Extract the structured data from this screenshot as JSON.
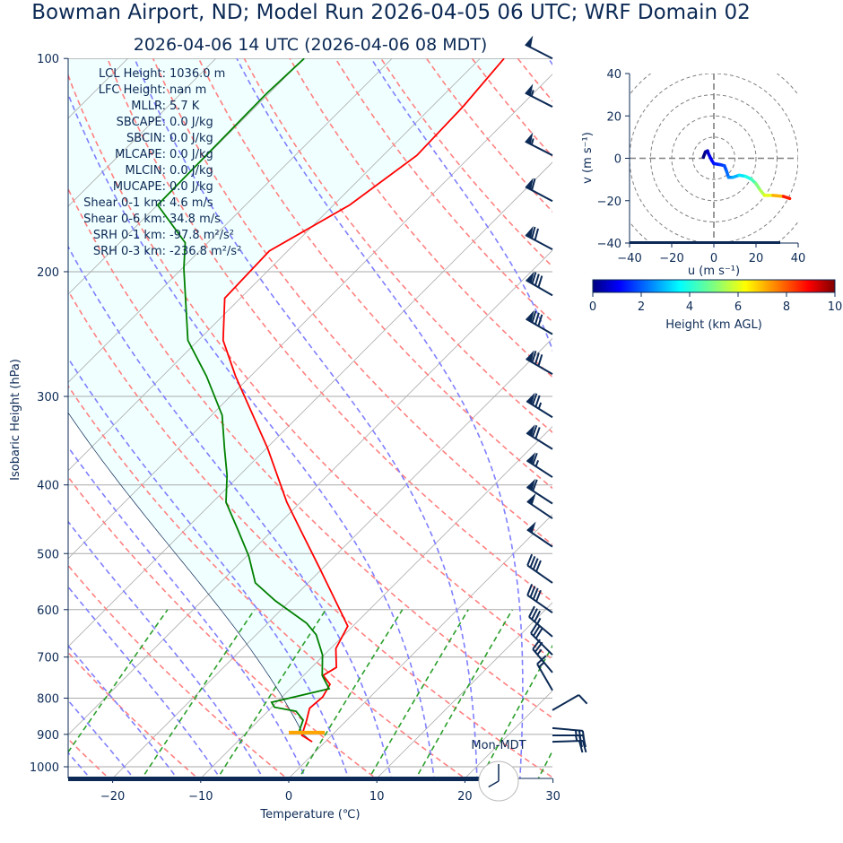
{
  "title": "Bowman Airport, ND; Model Run 2026-04-05 06 UTC; WRF Domain 02",
  "subtitle": "2026-04-06 14 UTC  (2026-04-06 08 MDT)",
  "colors": {
    "text": "#0c2a55",
    "temperature": "#ff0000",
    "dewpoint": "#008000",
    "dry_adiabat": "#ff8080",
    "moist_adiabat": "#7f7fff",
    "mixing_ratio": "#2ca02c",
    "cin_fill": "#f0ffff",
    "lcl_marker": "#ffa500"
  },
  "stats": [
    {
      "label": "LCL Height:",
      "value": "1036.0 m"
    },
    {
      "label": "LFC Height:",
      "value": "nan m"
    },
    {
      "label": "MLLR:",
      "value": "5.7 K"
    },
    {
      "label": "SBCAPE:",
      "value": "0.0 J/kg"
    },
    {
      "label": "SBCIN:",
      "value": "0.0 J/kg"
    },
    {
      "label": "MLCAPE:",
      "value": "0.0 J/kg"
    },
    {
      "label": "MLCIN:",
      "value": "0.0 J/kg"
    },
    {
      "label": "MUCAPE:",
      "value": "0.0 J/kg"
    },
    {
      "label": "Shear 0-1 km:",
      "value": "4.6 m/s"
    },
    {
      "label": "Shear 0-6 km:",
      "value": "34.8 m/s"
    },
    {
      "label": "SRH 0-1 km:",
      "value": "-97.8 m²/s²"
    },
    {
      "label": "SRH 0-3 km:",
      "value": "-236.8 m²/s²"
    }
  ],
  "clock": {
    "label": "Mon-MDT",
    "hour": 8,
    "minute": 0
  },
  "chart_data": [
    {
      "type": "line",
      "name": "skew-t",
      "xlabel": "Temperature (℃)",
      "ylabel": "Isobaric Height (hPa)",
      "xlim": [
        -25,
        30
      ],
      "ylim": [
        1039,
        100
      ],
      "yscale": "log",
      "skew_deg": 45,
      "grid": true,
      "xticks": [
        "−20",
        "−10",
        "0",
        "10",
        "20",
        "30"
      ],
      "xtick_values": [
        -20,
        -10,
        0,
        10,
        20,
        30
      ],
      "yticks": [
        "100",
        "200",
        "300",
        "400",
        "500",
        "600",
        "700",
        "800",
        "900",
        "1000"
      ],
      "ytick_values": [
        100,
        200,
        300,
        400,
        500,
        600,
        700,
        800,
        900,
        1000
      ],
      "temperature": {
        "p": [
          922,
          903,
          859,
          827,
          797,
          765,
          743,
          724,
          681,
          633,
          524,
          462,
          423,
          355,
          281,
          250,
          218,
          187,
          161,
          137,
          117,
          100
        ],
        "T": [
          -1.5,
          -3.4,
          -4.6,
          -5.6,
          -5.4,
          -6.0,
          -7.8,
          -7.2,
          -9.4,
          -10.6,
          -20.4,
          -27.0,
          -31.6,
          -39.9,
          -51.7,
          -57.2,
          -61.8,
          -62.1,
          -58.2,
          -56.2,
          -56.5,
          -57.3
        ]
      },
      "dewpoint": {
        "p": [
          890,
          859,
          835,
          824,
          811,
          776,
          743,
          695,
          651,
          627,
          583,
          550,
          504,
          462,
          423,
          388,
          355,
          319,
          281,
          250,
          198,
          182,
          161,
          112,
          100
        ],
        "Td": [
          -4.2,
          -5.0,
          -6.8,
          -9.7,
          -10.6,
          -5.6,
          -7.9,
          -10.2,
          -13.2,
          -15.6,
          -21.7,
          -26.0,
          -29.8,
          -34.1,
          -38.5,
          -41.4,
          -44.8,
          -48.8,
          -55.0,
          -61.2,
          -69.8,
          -72.6,
          -80.0,
          -80.3,
          -80.0
        ]
      },
      "lcl": {
        "p": 900
      },
      "parcel_start": {
        "p": 922,
        "T": -1.5
      },
      "dry_adiabats_K": [
        230,
        240,
        250,
        260,
        270,
        280,
        290,
        300,
        310,
        320,
        330,
        340,
        350,
        360,
        370,
        380,
        390,
        400,
        410,
        420,
        430,
        440,
        450,
        460,
        470,
        480,
        490,
        500
      ],
      "moist_adiabats_C_at_1000": [
        -30,
        -25,
        -20,
        -15,
        -10,
        -5,
        0,
        5,
        10,
        15,
        20,
        25,
        30,
        35
      ],
      "mixing_ratios_gkg": [
        0.4,
        1,
        2,
        4,
        7,
        10,
        16,
        24,
        32
      ],
      "wind_barbs": [
        {
          "p": 100,
          "kt": 50,
          "dir": 297
        },
        {
          "p": 117,
          "kt": 55,
          "dir": 297
        },
        {
          "p": 137,
          "kt": 55,
          "dir": 297
        },
        {
          "p": 159,
          "kt": 60,
          "dir": 298
        },
        {
          "p": 186,
          "kt": 70,
          "dir": 298
        },
        {
          "p": 216,
          "kt": 80,
          "dir": 300
        },
        {
          "p": 245,
          "kt": 80,
          "dir": 300
        },
        {
          "p": 279,
          "kt": 80,
          "dir": 300
        },
        {
          "p": 321,
          "kt": 75,
          "dir": 302
        },
        {
          "p": 356,
          "kt": 70,
          "dir": 302
        },
        {
          "p": 390,
          "kt": 65,
          "dir": 303
        },
        {
          "p": 425,
          "kt": 60,
          "dir": 303
        },
        {
          "p": 446,
          "kt": 50,
          "dir": 304
        },
        {
          "p": 489,
          "kt": 50,
          "dir": 304
        },
        {
          "p": 550,
          "kt": 40,
          "dir": 305
        },
        {
          "p": 606,
          "kt": 40,
          "dir": 305
        },
        {
          "p": 655,
          "kt": 35,
          "dir": 310
        },
        {
          "p": 695,
          "kt": 30,
          "dir": 315
        },
        {
          "p": 736,
          "kt": 25,
          "dir": 320
        },
        {
          "p": 780,
          "kt": 15,
          "dir": 330
        },
        {
          "p": 832,
          "kt": 10,
          "dir": 60
        },
        {
          "p": 882,
          "kt": 25,
          "dir": 95
        },
        {
          "p": 903,
          "kt": 25,
          "dir": 90
        },
        {
          "p": 922,
          "kt": 20,
          "dir": 88
        }
      ]
    },
    {
      "type": "line",
      "name": "hodograph",
      "xlabel": "u (m s⁻¹)",
      "ylabel": "v (m s⁻¹)",
      "xlim": [
        -40,
        40
      ],
      "ylim": [
        -40,
        40
      ],
      "xticks": [
        "−40",
        "−20",
        "0",
        "20",
        "40"
      ],
      "yticks": [
        "40",
        "20",
        "0",
        "−20",
        "−40"
      ],
      "tick_values": [
        -40,
        -20,
        0,
        20,
        40
      ],
      "rings": [
        10,
        20,
        30,
        40,
        50
      ],
      "u": [
        -5,
        -4,
        -3,
        -2.5,
        -2,
        -1,
        0,
        3,
        5,
        6,
        7,
        9,
        12,
        15,
        18,
        20,
        22,
        24,
        28,
        33,
        36
      ],
      "v": [
        0.5,
        3,
        3.5,
        2,
        1,
        -1,
        -2.5,
        -3,
        -3.5,
        -6,
        -9,
        -9,
        -8,
        -8.5,
        -10,
        -12,
        -15,
        -17.5,
        -17.5,
        -18,
        -19
      ],
      "height_km": [
        0,
        0.3,
        0.6,
        0.9,
        1.1,
        1.3,
        1.5,
        1.8,
        2.0,
        2.3,
        2.6,
        3.0,
        3.5,
        4.0,
        4.5,
        5.0,
        5.5,
        6.0,
        7.0,
        8.5,
        9.5
      ]
    },
    {
      "type": "colorbar",
      "name": "height-colorbar",
      "label": "Height (km AGL)",
      "range": [
        0,
        10
      ],
      "colormap": "jet",
      "ticks": [
        "0",
        "2",
        "4",
        "6",
        "8",
        "10"
      ],
      "tick_values": [
        0,
        2,
        4,
        6,
        8,
        10
      ]
    }
  ]
}
